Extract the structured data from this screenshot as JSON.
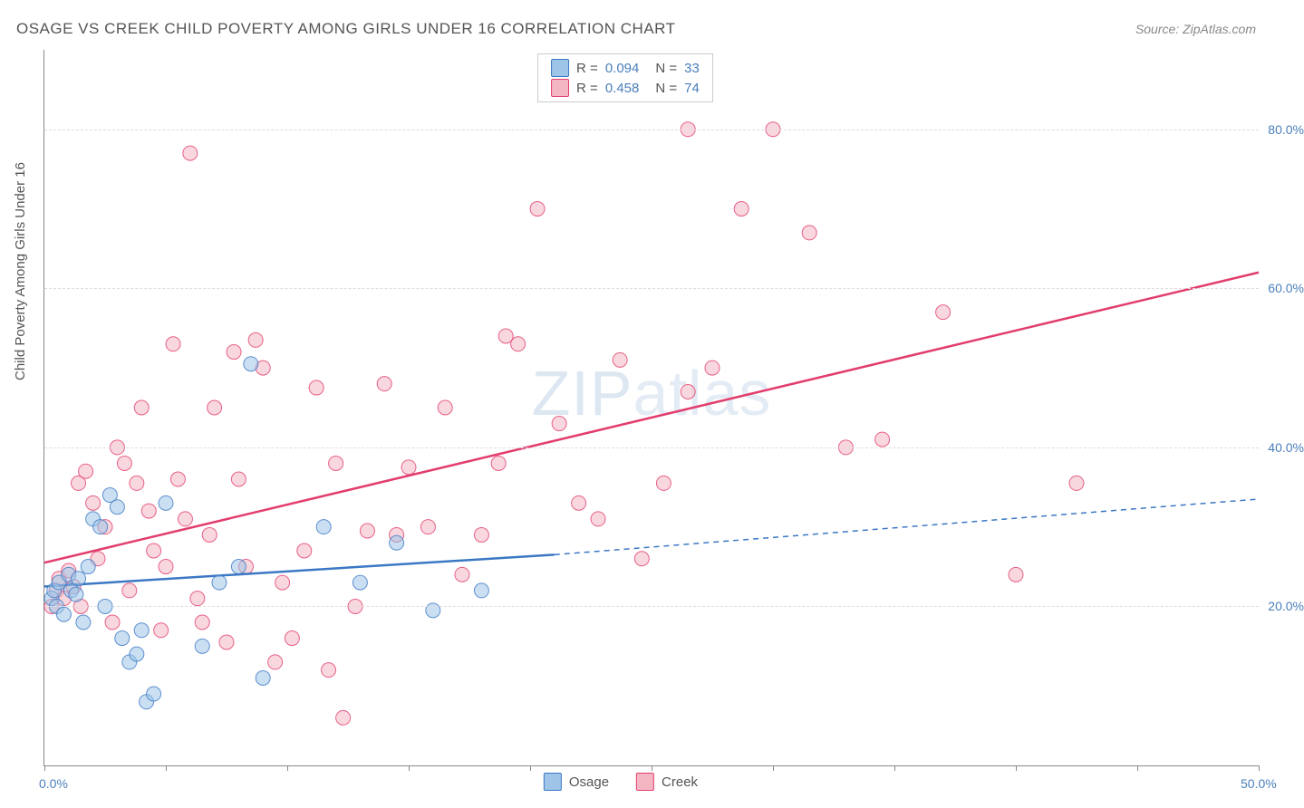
{
  "title": "OSAGE VS CREEK CHILD POVERTY AMONG GIRLS UNDER 16 CORRELATION CHART",
  "source": "Source: ZipAtlas.com",
  "ylabel": "Child Poverty Among Girls Under 16",
  "watermark": "ZIPatlas",
  "chart": {
    "type": "scatter",
    "xlim": [
      0,
      50
    ],
    "ylim": [
      0,
      90
    ],
    "x_ticks": [
      0,
      5,
      10,
      15,
      20,
      25,
      30,
      35,
      40,
      45,
      50
    ],
    "x_tick_labels": {
      "0": "0.0%",
      "50": "50.0%"
    },
    "y_gridlines": [
      20,
      40,
      60,
      80
    ],
    "y_tick_labels": {
      "20": "20.0%",
      "40": "40.0%",
      "60": "60.0%",
      "80": "80.0%"
    },
    "background_color": "#ffffff",
    "grid_color": "#dddddd",
    "marker_radius": 8,
    "marker_opacity": 0.55,
    "series": [
      {
        "name": "Osage",
        "color_fill": "#9ec5e8",
        "color_stroke": "#3b78c4",
        "R": "0.094",
        "N": "33",
        "trend": {
          "x1": 0,
          "y1": 22.5,
          "x2": 21,
          "y2": 26.5,
          "x2_ext": 50,
          "y2_ext": 33.5,
          "width": 2.5,
          "dash_ext": "6,5"
        },
        "points": [
          [
            0.3,
            21
          ],
          [
            0.4,
            22
          ],
          [
            0.5,
            20
          ],
          [
            0.6,
            23
          ],
          [
            0.8,
            19
          ],
          [
            1.0,
            24
          ],
          [
            1.1,
            22
          ],
          [
            1.3,
            21.5
          ],
          [
            1.4,
            23.5
          ],
          [
            1.6,
            18
          ],
          [
            1.8,
            25
          ],
          [
            2.0,
            31
          ],
          [
            2.3,
            30
          ],
          [
            2.5,
            20
          ],
          [
            2.7,
            34
          ],
          [
            3.0,
            32.5
          ],
          [
            3.2,
            16
          ],
          [
            3.5,
            13
          ],
          [
            3.8,
            14
          ],
          [
            4.0,
            17
          ],
          [
            4.2,
            8
          ],
          [
            4.5,
            9
          ],
          [
            5.0,
            33
          ],
          [
            6.5,
            15
          ],
          [
            7.2,
            23
          ],
          [
            8.0,
            25
          ],
          [
            8.5,
            50.5
          ],
          [
            9.0,
            11
          ],
          [
            11.5,
            30
          ],
          [
            13.0,
            23
          ],
          [
            14.5,
            28
          ],
          [
            16.0,
            19.5
          ],
          [
            18.0,
            22
          ]
        ]
      },
      {
        "name": "Creek",
        "color_fill": "#f4b6c2",
        "color_stroke": "#e23d6d",
        "R": "0.458",
        "N": "74",
        "trend": {
          "x1": 0,
          "y1": 25.5,
          "x2": 50,
          "y2": 62,
          "width": 2.5
        },
        "points": [
          [
            0.3,
            20
          ],
          [
            0.5,
            22
          ],
          [
            0.6,
            23.5
          ],
          [
            0.8,
            21
          ],
          [
            1.0,
            24.5
          ],
          [
            1.2,
            22.5
          ],
          [
            1.4,
            35.5
          ],
          [
            1.5,
            20
          ],
          [
            1.7,
            37
          ],
          [
            2.0,
            33
          ],
          [
            2.2,
            26
          ],
          [
            2.5,
            30
          ],
          [
            2.8,
            18
          ],
          [
            3.0,
            40
          ],
          [
            3.3,
            38
          ],
          [
            3.5,
            22
          ],
          [
            3.8,
            35.5
          ],
          [
            4.0,
            45
          ],
          [
            4.3,
            32
          ],
          [
            4.5,
            27
          ],
          [
            4.8,
            17
          ],
          [
            5.0,
            25
          ],
          [
            5.3,
            53
          ],
          [
            5.5,
            36
          ],
          [
            5.8,
            31
          ],
          [
            6.0,
            77
          ],
          [
            6.3,
            21
          ],
          [
            6.5,
            18
          ],
          [
            6.8,
            29
          ],
          [
            7.0,
            45
          ],
          [
            7.5,
            15.5
          ],
          [
            7.8,
            52
          ],
          [
            8.0,
            36
          ],
          [
            8.3,
            25
          ],
          [
            8.7,
            53.5
          ],
          [
            9.0,
            50
          ],
          [
            9.5,
            13
          ],
          [
            9.8,
            23
          ],
          [
            10.2,
            16
          ],
          [
            10.7,
            27
          ],
          [
            11.2,
            47.5
          ],
          [
            11.7,
            12
          ],
          [
            12.3,
            6
          ],
          [
            12.8,
            20
          ],
          [
            13.3,
            29.5
          ],
          [
            14.0,
            48
          ],
          [
            14.5,
            29
          ],
          [
            15.0,
            37.5
          ],
          [
            15.8,
            30
          ],
          [
            16.5,
            45
          ],
          [
            17.2,
            24
          ],
          [
            18.0,
            29
          ],
          [
            18.7,
            38
          ],
          [
            19.5,
            53
          ],
          [
            20.3,
            70
          ],
          [
            21.2,
            43
          ],
          [
            22.0,
            33
          ],
          [
            22.8,
            31
          ],
          [
            23.7,
            51
          ],
          [
            24.6,
            26
          ],
          [
            25.5,
            35.5
          ],
          [
            26.5,
            47
          ],
          [
            27.5,
            50
          ],
          [
            28.7,
            70
          ],
          [
            30.0,
            80
          ],
          [
            31.5,
            67
          ],
          [
            33.0,
            40
          ],
          [
            34.5,
            41
          ],
          [
            37.0,
            57
          ],
          [
            40.0,
            24
          ],
          [
            42.5,
            35.5
          ],
          [
            26.5,
            80
          ],
          [
            12.0,
            38
          ],
          [
            19.0,
            54
          ]
        ]
      }
    ]
  },
  "legend_bottom": [
    {
      "label": "Osage",
      "fill": "#9ec5e8",
      "stroke": "#3b78c4"
    },
    {
      "label": "Creek",
      "fill": "#f4b6c2",
      "stroke": "#e23d6d"
    }
  ]
}
